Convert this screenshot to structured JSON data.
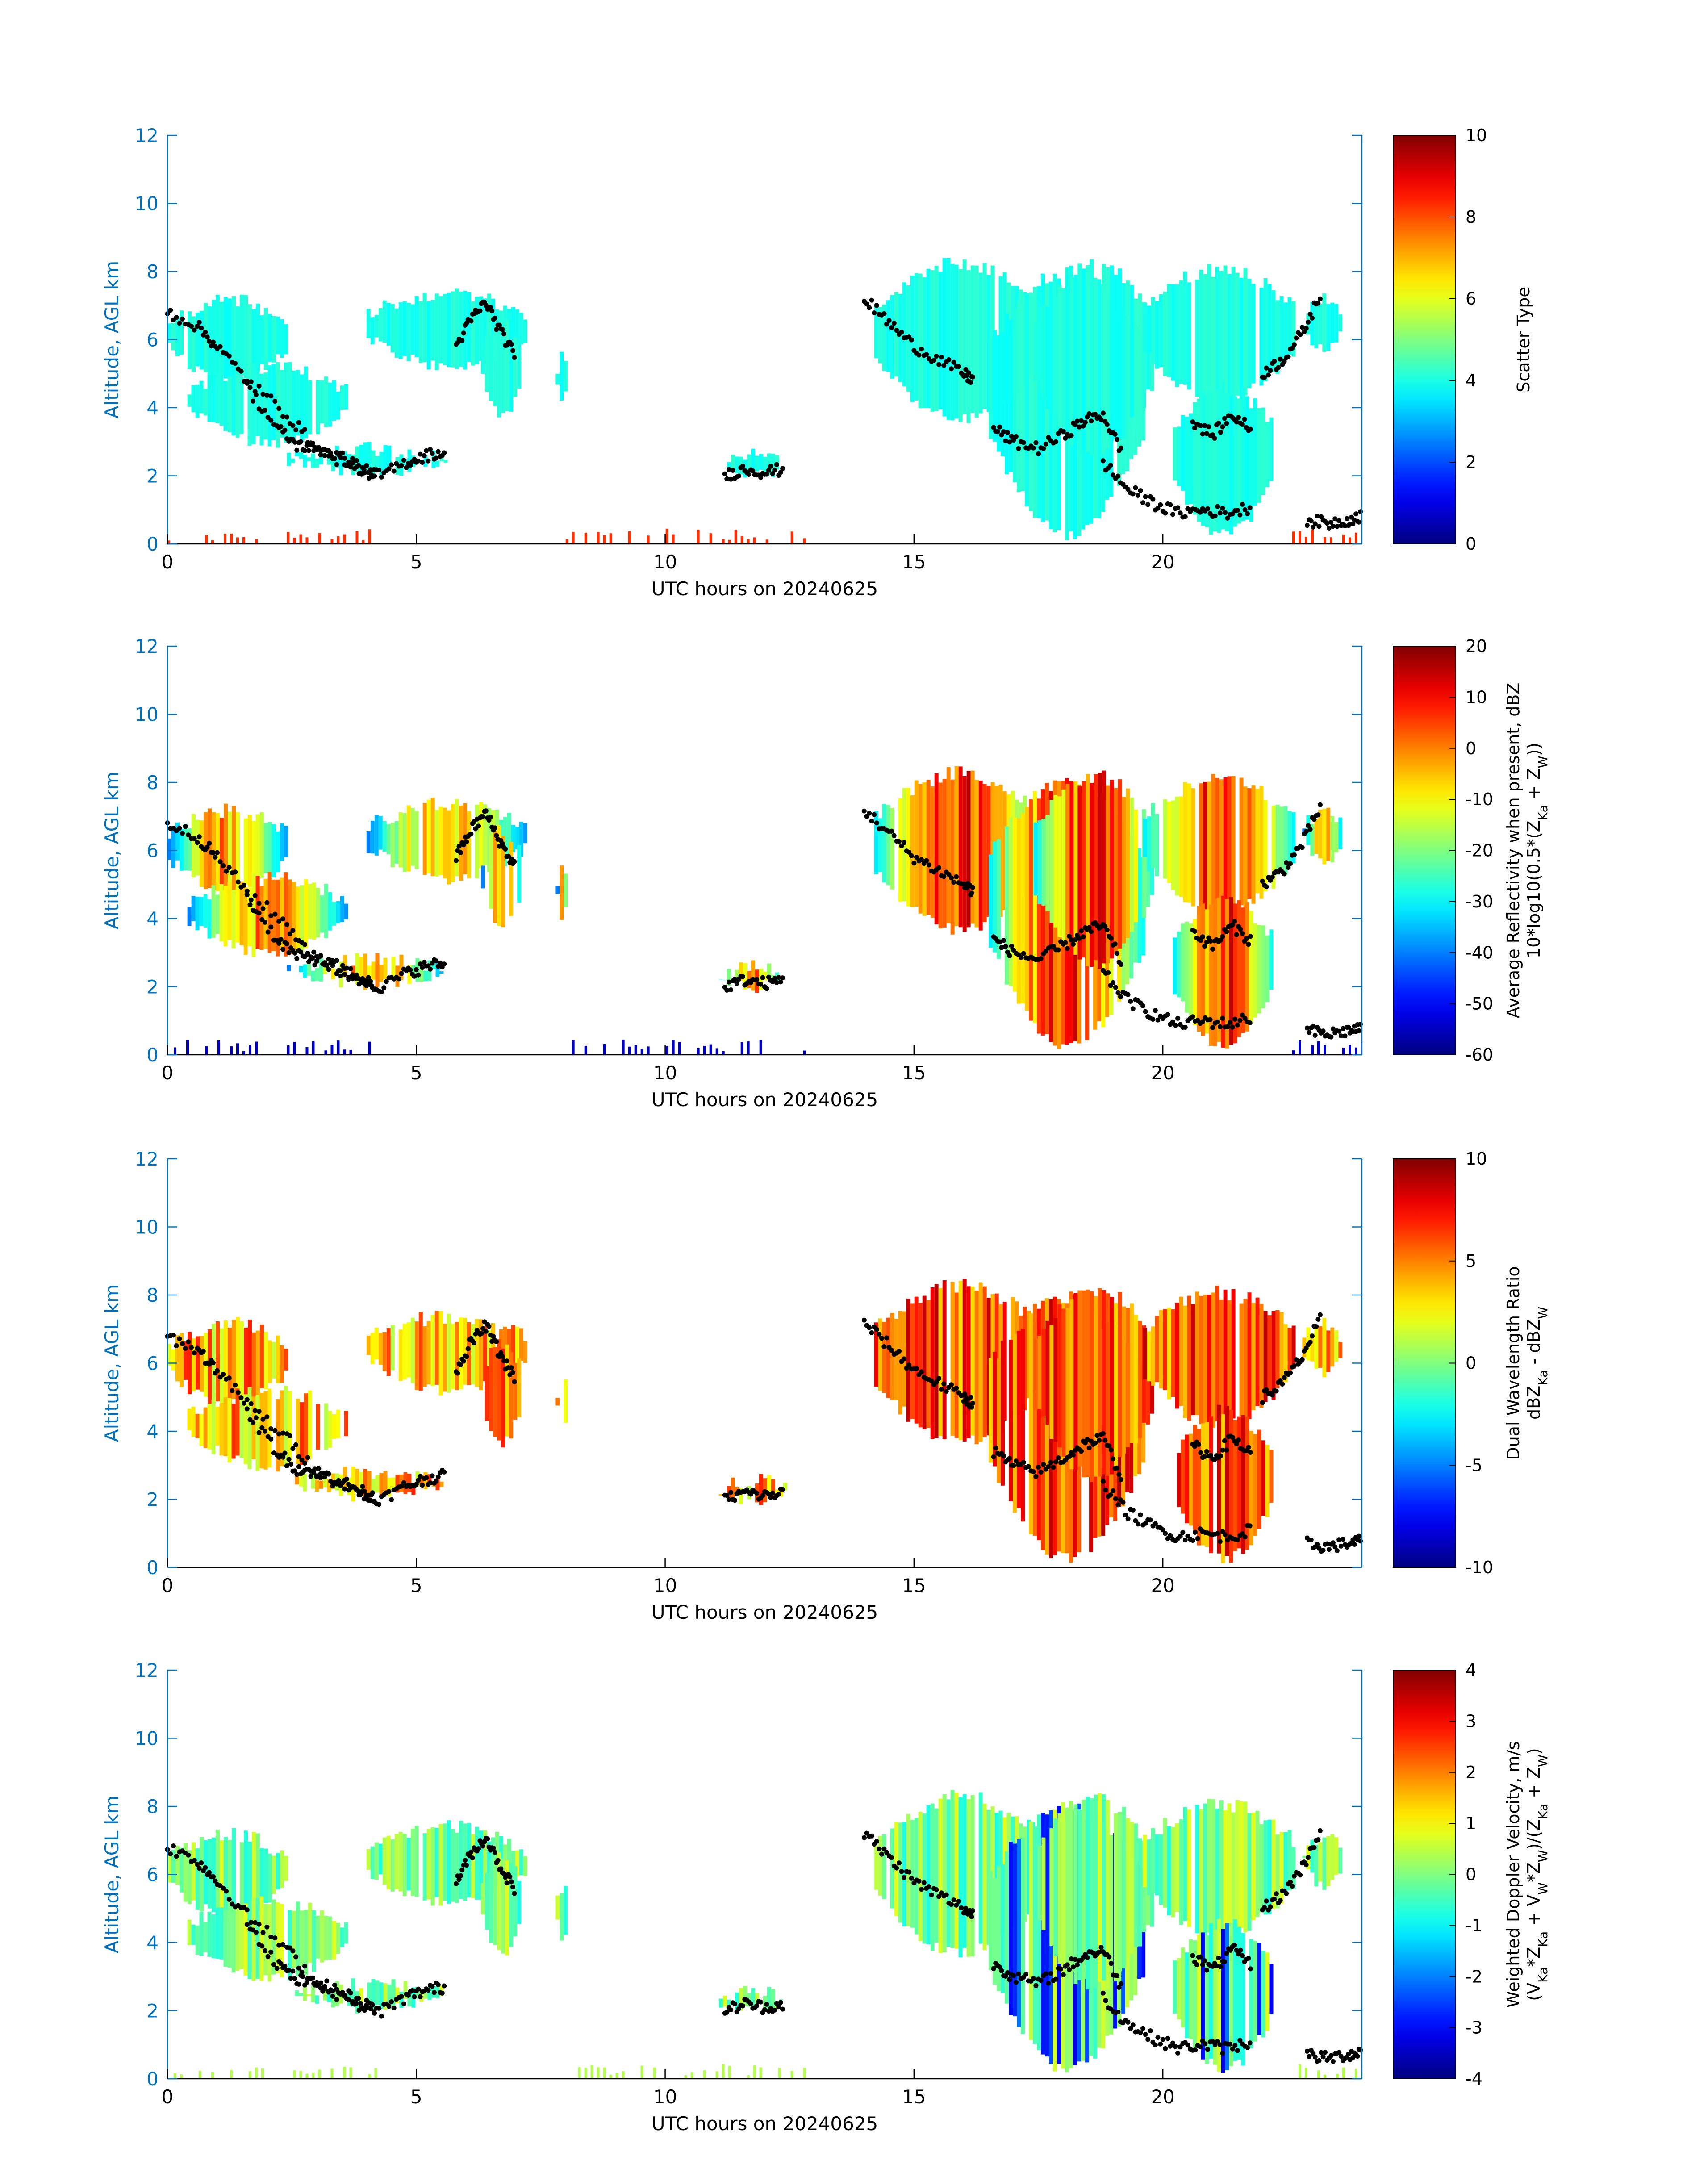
{
  "colors": {
    "yaxis": "#0072BD",
    "xaxis": "#000000",
    "markers": "#000000",
    "colormap": "jet"
  },
  "chart_data": [
    {
      "type": "heatmap",
      "xlabel": "UTC hours on 20240625",
      "ylabel": "Altitude, AGL km",
      "xlim": [
        0,
        24
      ],
      "ylim": [
        0,
        12
      ],
      "xticks": [
        0,
        5,
        10,
        15,
        20
      ],
      "yticks": [
        0,
        2,
        4,
        6,
        8,
        10,
        12
      ],
      "colorbar": {
        "label_lines": [
          "Scatter Type"
        ],
        "clim": [
          0,
          10
        ],
        "ticks": [
          0,
          2,
          4,
          6,
          8,
          10
        ]
      }
    },
    {
      "type": "heatmap",
      "xlabel": "UTC hours on 20240625",
      "ylabel": "Altitude, AGL km",
      "xlim": [
        0,
        24
      ],
      "ylim": [
        0,
        12
      ],
      "xticks": [
        0,
        5,
        10,
        15,
        20
      ],
      "yticks": [
        0,
        2,
        4,
        6,
        8,
        10,
        12
      ],
      "colorbar": {
        "label_lines": [
          "Average Reflectivity when present, dBZ",
          "10*log10(0.5*(Z_Ka + Z_W))"
        ],
        "clim": [
          -60,
          20
        ],
        "ticks": [
          -60,
          -50,
          -40,
          -30,
          -20,
          -10,
          0,
          10,
          20
        ]
      }
    },
    {
      "type": "heatmap",
      "xlabel": "UTC hours on 20240625",
      "ylabel": "Altitude, AGL km",
      "xlim": [
        0,
        24
      ],
      "ylim": [
        0,
        12
      ],
      "xticks": [
        0,
        5,
        10,
        15,
        20
      ],
      "yticks": [
        0,
        2,
        4,
        6,
        8,
        10,
        12
      ],
      "colorbar": {
        "label_lines": [
          "Dual Wavelength Ratio",
          "dBZ_Ka - dBZ_W"
        ],
        "clim": [
          -10,
          10
        ],
        "ticks": [
          -10,
          -5,
          0,
          5,
          10
        ]
      }
    },
    {
      "type": "heatmap",
      "xlabel": "UTC hours on 20240625",
      "ylabel": "Altitude, AGL km",
      "xlim": [
        0,
        24
      ],
      "ylim": [
        0,
        12
      ],
      "xticks": [
        0,
        5,
        10,
        15,
        20
      ],
      "yticks": [
        0,
        2,
        4,
        6,
        8,
        10,
        12
      ],
      "colorbar": {
        "label_lines": [
          "Weighted Doppler Velocity, m/s",
          "(V_Ka*Z_Ka + V_W*Z_W)/(Z_Ka + Z_W)"
        ],
        "clim": [
          -4,
          4
        ],
        "ticks": [
          -4,
          -3,
          -2,
          -1,
          0,
          1,
          2,
          3,
          4
        ]
      }
    }
  ],
  "cloud_regions": [
    {
      "t0": 0.0,
      "t1": 2.4,
      "base": 4.6,
      "top": 7.4
    },
    {
      "t0": 0.4,
      "t1": 3.6,
      "base": 2.8,
      "top": 5.4
    },
    {
      "t0": 2.4,
      "t1": 5.6,
      "base": 1.9,
      "top": 3.0
    },
    {
      "t0": 4.0,
      "t1": 7.2,
      "base": 5.0,
      "top": 7.6
    },
    {
      "t0": 6.3,
      "t1": 7.1,
      "base": 3.5,
      "top": 6.8
    },
    {
      "t0": 7.8,
      "t1": 8.0,
      "base": 3.9,
      "top": 5.9
    },
    {
      "t0": 11.0,
      "t1": 12.4,
      "base": 1.8,
      "top": 2.8
    },
    {
      "t0": 14.2,
      "t1": 17.6,
      "base": 3.5,
      "top": 8.5
    },
    {
      "t0": 16.5,
      "t1": 19.6,
      "base": 0.1,
      "top": 8.2
    },
    {
      "t0": 17.4,
      "t1": 19.8,
      "base": 2.5,
      "top": 8.4
    },
    {
      "t0": 19.6,
      "t1": 22.6,
      "base": 4.0,
      "top": 8.3
    },
    {
      "t0": 20.2,
      "t1": 22.2,
      "base": 0.1,
      "top": 4.8
    },
    {
      "t0": 22.8,
      "t1": 23.6,
      "base": 5.5,
      "top": 7.4
    }
  ],
  "surface_clutter": [
    {
      "t0": 0.0,
      "t1": 2.0
    },
    {
      "t0": 2.4,
      "t1": 4.2
    },
    {
      "t0": 8.0,
      "t1": 12.8
    },
    {
      "t0": 22.6,
      "t1": 24.0
    }
  ],
  "cloud_boundaries": [
    {
      "t": [
        0.0,
        0.6,
        1.0,
        1.6,
        2.4,
        3.0,
        3.8,
        4.3,
        4.8,
        5.2,
        5.6
      ],
      "alt": [
        6.8,
        6.4,
        5.8,
        4.8,
        3.8,
        2.8,
        2.2,
        2.0,
        2.4,
        2.6,
        2.7
      ]
    },
    {
      "t": [
        1.6,
        2.2,
        2.6,
        3.0,
        3.4,
        3.8,
        4.2
      ],
      "alt": [
        4.6,
        3.4,
        2.9,
        2.8,
        2.6,
        2.3,
        2.0
      ]
    },
    {
      "t": [
        5.8,
        6.1,
        6.4,
        6.7,
        7.0
      ],
      "alt": [
        5.8,
        6.6,
        7.1,
        6.2,
        5.5
      ]
    },
    {
      "t": [
        11.2,
        11.6,
        12.0,
        12.4
      ],
      "alt": [
        2.0,
        2.2,
        2.1,
        2.2
      ]
    },
    {
      "t": [
        14.0,
        14.5,
        15.0,
        15.5,
        16.0,
        16.2
      ],
      "alt": [
        7.2,
        6.5,
        5.8,
        5.4,
        5.0,
        4.8
      ]
    },
    {
      "t": [
        16.6,
        17.0,
        17.5,
        18.0,
        18.4,
        18.8,
        19.2
      ],
      "alt": [
        3.4,
        3.0,
        2.8,
        3.2,
        3.6,
        3.8,
        2.6
      ]
    },
    {
      "t": [
        18.8,
        19.3,
        19.8,
        20.3,
        20.8,
        21.3,
        21.8
      ],
      "alt": [
        2.4,
        1.6,
        1.2,
        0.9,
        1.0,
        0.9,
        1.1
      ]
    },
    {
      "t": [
        20.6,
        21.0,
        21.4,
        21.8
      ],
      "alt": [
        3.6,
        3.2,
        3.8,
        3.3
      ]
    },
    {
      "t": [
        22.0,
        22.4,
        22.8,
        23.2
      ],
      "alt": [
        5.0,
        5.4,
        6.2,
        7.4
      ]
    },
    {
      "t": [
        22.9,
        23.3,
        23.7,
        24.0
      ],
      "alt": [
        0.7,
        0.6,
        0.7,
        0.8
      ]
    }
  ]
}
